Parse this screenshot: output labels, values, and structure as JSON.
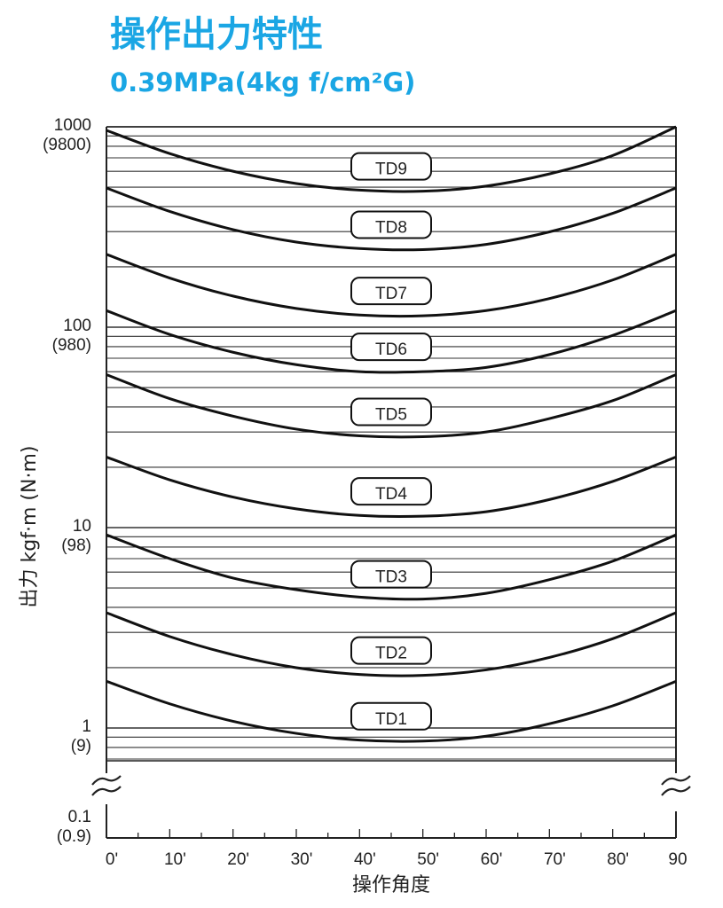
{
  "chart_data": {
    "type": "line",
    "title": "操作出力特性",
    "subtitle": "0.39MPa(4kg f/cm²G)",
    "xlabel": "操作角度",
    "ylabel": "出力 kgf·m (N·m)",
    "yscale": "log",
    "xlim": [
      0,
      90
    ],
    "ylim": [
      0.1,
      1000
    ],
    "axis_break": "between 0.1 and 1",
    "grid": "horizontal log gridlines",
    "line_color": "#111111",
    "title_color": "#1aa6e4",
    "x_tick_labels": [
      "0'",
      "10'",
      "20'",
      "30'",
      "40'",
      "50'",
      "60'",
      "70'",
      "80'",
      "90"
    ],
    "y_tick_labels": [
      {
        "value": 1000,
        "label": "1000",
        "sub": "(9800)"
      },
      {
        "value": 100,
        "label": "100",
        "sub": "(980)"
      },
      {
        "value": 10,
        "label": "10",
        "sub": "(98)"
      },
      {
        "value": 1,
        "label": "1",
        "sub": "(9)"
      },
      {
        "value": 0.1,
        "label": "0.1",
        "sub": "(0.9)"
      }
    ],
    "x": [
      0,
      10,
      20,
      30,
      40,
      50,
      60,
      70,
      80,
      90
    ],
    "series": [
      {
        "name": "TD9",
        "values": [
          960,
          735,
          600,
          521,
          483,
          477,
          506,
          582,
          719,
          1000
        ]
      },
      {
        "name": "TD8",
        "values": [
          495,
          378,
          307,
          266,
          247,
          244,
          259,
          299,
          370,
          495
        ]
      },
      {
        "name": "TD7",
        "values": [
          231,
          176,
          143,
          124,
          115,
          114,
          121,
          139,
          172,
          231
        ]
      },
      {
        "name": "TD6",
        "values": [
          121,
          92,
          75,
          65,
          60,
          60,
          63,
          73,
          91,
          121
        ]
      },
      {
        "name": "TD5",
        "values": [
          58,
          44,
          36,
          31,
          28.7,
          28.4,
          30,
          35,
          43,
          58
        ]
      },
      {
        "name": "TD4",
        "values": [
          22.5,
          17.3,
          14.2,
          12.4,
          11.5,
          11.4,
          12.0,
          13.8,
          17.0,
          22.5
        ]
      },
      {
        "name": "TD3",
        "values": [
          9.2,
          7.0,
          5.6,
          4.9,
          4.5,
          4.4,
          4.7,
          5.5,
          6.8,
          9.2
        ]
      },
      {
        "name": "TD2",
        "values": [
          3.76,
          2.86,
          2.32,
          2.0,
          1.85,
          1.83,
          1.95,
          2.25,
          2.79,
          3.76
        ]
      },
      {
        "name": "TD1",
        "values": [
          1.71,
          1.32,
          1.08,
          0.94,
          0.87,
          0.86,
          0.91,
          1.05,
          1.29,
          1.71
        ]
      }
    ]
  }
}
